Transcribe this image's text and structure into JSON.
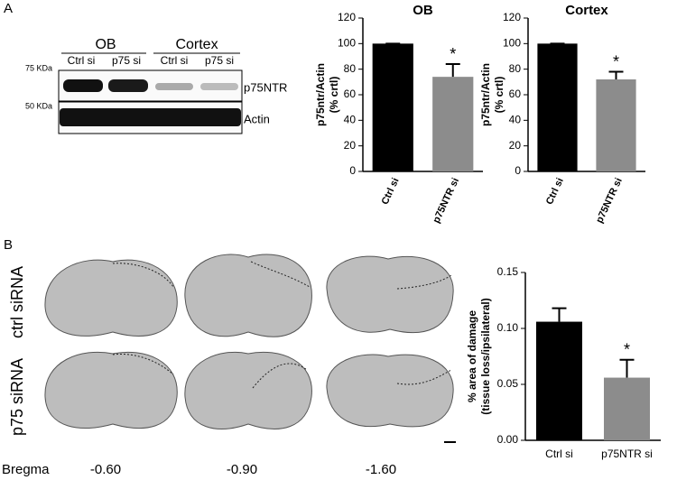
{
  "panels": {
    "a": "A",
    "b": "B"
  },
  "blot": {
    "groups": [
      "OB",
      "Cortex"
    ],
    "lanes": [
      "Ctrl si",
      "p75 si",
      "Ctrl si",
      "p75 si"
    ],
    "markers": [
      "75 KDa",
      "50 KDa"
    ],
    "bands": [
      "p75NTR",
      "Actin"
    ]
  },
  "brains": {
    "rows": [
      "ctrl siRNA",
      "p75 siRNA"
    ],
    "bregma_label": "Bregma",
    "bregma": [
      "-0.60",
      "-0.90",
      "-1.60"
    ]
  },
  "chart_data": [
    {
      "type": "bar",
      "title": "OB",
      "y_label": [
        "p75ntr/Actin",
        "(% crtl)"
      ],
      "categories": [
        "Ctrl si",
        "p75NTR si"
      ],
      "values": [
        100,
        74
      ],
      "errors": [
        0,
        10
      ],
      "colors": [
        "#000000",
        "#8c8c8c"
      ],
      "ylim": [
        0,
        120
      ],
      "yticks": [
        0,
        20,
        40,
        60,
        80,
        100,
        120
      ],
      "annotation": "*"
    },
    {
      "type": "bar",
      "title": "Cortex",
      "y_label": [
        "p75ntr/Actin",
        "(% crtl)"
      ],
      "categories": [
        "Ctrl si",
        "p75NTR si"
      ],
      "values": [
        100,
        72
      ],
      "errors": [
        0,
        6
      ],
      "colors": [
        "#000000",
        "#8c8c8c"
      ],
      "ylim": [
        0,
        120
      ],
      "yticks": [
        0,
        20,
        40,
        60,
        80,
        100,
        120
      ],
      "annotation": "*"
    },
    {
      "type": "bar",
      "y_label": [
        "% area of damage",
        "(tissue loss/ipsilateral)"
      ],
      "categories": [
        "Ctrl si",
        "p75NTR si"
      ],
      "values": [
        0.106,
        0.056
      ],
      "errors": [
        0.012,
        0.016
      ],
      "colors": [
        "#000000",
        "#8c8c8c"
      ],
      "ylim": [
        0,
        0.15
      ],
      "yticks": [
        {
          "value": 0,
          "label": "0.00"
        },
        {
          "value": 0.05,
          "label": "0.05"
        },
        {
          "value": 0.1,
          "label": "0.10"
        },
        {
          "value": 0.15,
          "label": "0.15"
        }
      ],
      "annotation": "*"
    }
  ]
}
